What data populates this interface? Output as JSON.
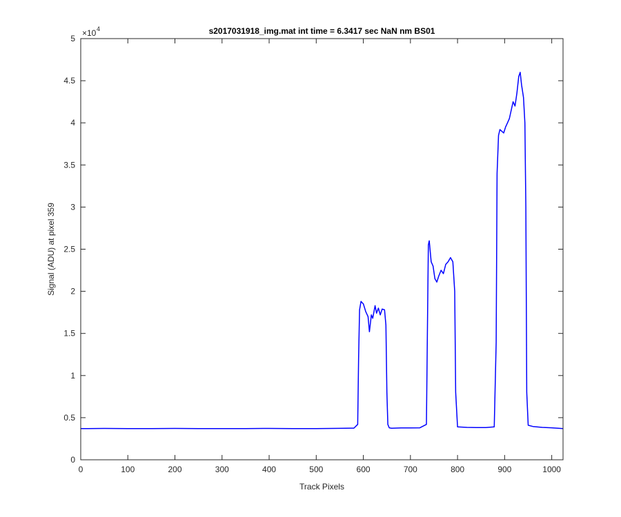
{
  "chart_data": {
    "type": "line",
    "title": "s2017031918_img.mat int time = 6.3417 sec  NaN nm BS01",
    "xlabel": "Track Pixels",
    "ylabel": "Signal (ADU) at pixel 359",
    "xlim": [
      0,
      1024
    ],
    "ylim": [
      0,
      50000
    ],
    "x_ticks": [
      0,
      100,
      200,
      300,
      400,
      500,
      600,
      700,
      800,
      900,
      1000
    ],
    "y_ticks": [
      0,
      5000,
      10000,
      15000,
      20000,
      25000,
      30000,
      35000,
      40000,
      45000,
      50000
    ],
    "x_tick_labels": [
      "0",
      "100",
      "200",
      "300",
      "400",
      "500",
      "600",
      "700",
      "800",
      "900",
      "1000"
    ],
    "y_tick_labels": [
      "0",
      "0.5",
      "1",
      "1.5",
      "2",
      "2.5",
      "3",
      "3.5",
      "4",
      "4.5",
      "5"
    ],
    "y_exponent_label": "×10",
    "y_exponent_power": "4",
    "grid": false,
    "line_color": "#0000ff",
    "series": [
      {
        "x": [
          0,
          50,
          100,
          150,
          200,
          250,
          300,
          350,
          400,
          450,
          500,
          550,
          580,
          588,
          590,
          592,
          595,
          600,
          605,
          610,
          613,
          617,
          620,
          625,
          628,
          632,
          636,
          640,
          645,
          648,
          650,
          652,
          655,
          660,
          680,
          700,
          720,
          734,
          736,
          738,
          740,
          744,
          748,
          752,
          756,
          760,
          765,
          770,
          775,
          780,
          785,
          790,
          794,
          796,
          800,
          820,
          840,
          860,
          878,
          882,
          884,
          887,
          890,
          894,
          898,
          902,
          906,
          910,
          914,
          918,
          922,
          926,
          930,
          933,
          936,
          940,
          943,
          945,
          947,
          950,
          960,
          980,
          1000,
          1024
        ],
        "y": [
          3700,
          3720,
          3710,
          3700,
          3720,
          3710,
          3700,
          3710,
          3720,
          3700,
          3710,
          3730,
          3760,
          4200,
          12000,
          17800,
          18800,
          18500,
          17600,
          17000,
          15200,
          17200,
          16800,
          18300,
          17400,
          18000,
          17200,
          17900,
          17800,
          16000,
          8000,
          4200,
          3800,
          3750,
          3780,
          3780,
          3800,
          4200,
          15000,
          25500,
          26000,
          23500,
          23000,
          21500,
          21100,
          21800,
          22500,
          22100,
          23200,
          23500,
          24000,
          23500,
          20000,
          8000,
          3900,
          3850,
          3830,
          3820,
          3900,
          14000,
          34000,
          38500,
          39200,
          39000,
          38800,
          39500,
          40000,
          40500,
          41500,
          42500,
          42000,
          43500,
          45500,
          46000,
          44500,
          43000,
          40000,
          30000,
          8000,
          4100,
          3950,
          3850,
          3800,
          3700
        ]
      }
    ]
  }
}
